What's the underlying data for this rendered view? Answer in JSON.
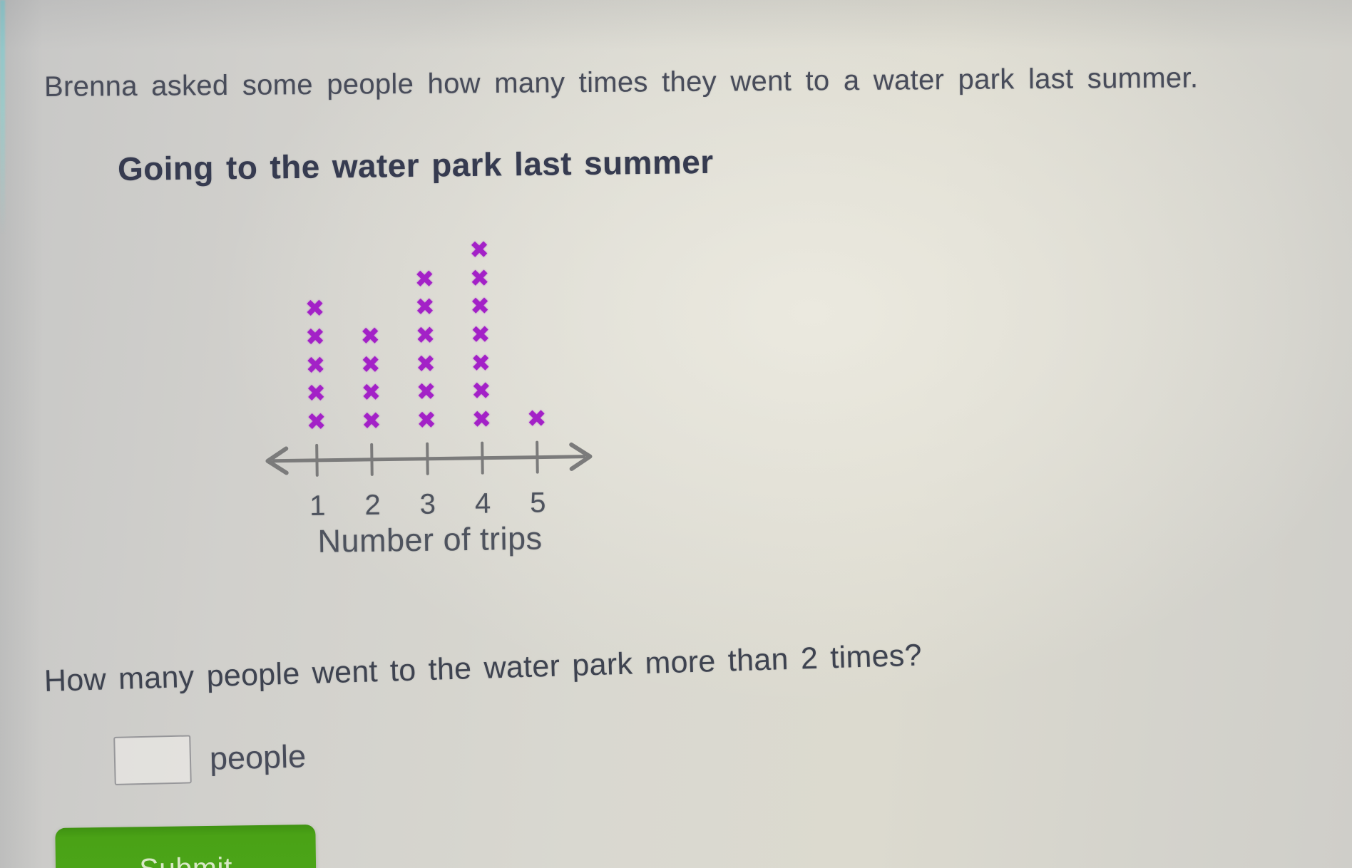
{
  "page": {
    "intro": "Brenna asked some people how many times they went to a water park last summer.",
    "question": "How many people went to the water park more than 2 times?",
    "answer_value": "",
    "answer_unit": "people",
    "submit_label": "Submit"
  },
  "chart_data": {
    "type": "line_plot",
    "title": "Going to the water park last summer",
    "xlabel": "Number of trips",
    "categories": [
      "1",
      "2",
      "3",
      "4",
      "5"
    ],
    "values": [
      5,
      4,
      6,
      7,
      1
    ],
    "ylim": [
      0,
      7
    ],
    "marker_glyph": "x-mark",
    "marker_color": "#a321c7",
    "axis_color": "#7b7b7b",
    "grid": "off",
    "legend": "none"
  },
  "colors": {
    "title_ink": "#363b50",
    "body_ink": "#484c5a",
    "submit_background": "#4aa216",
    "submit_ink": "#d8e8c6"
  }
}
